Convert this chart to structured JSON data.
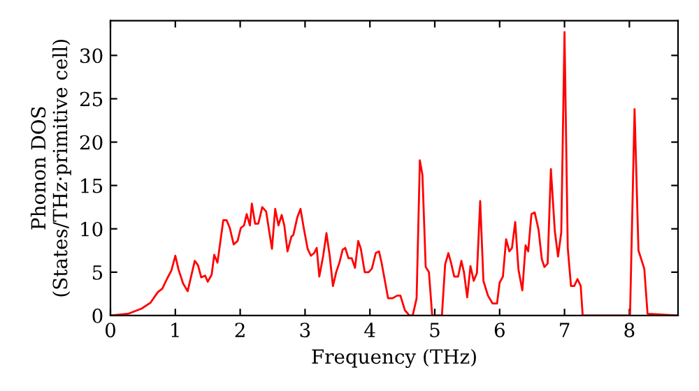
{
  "chart_data": {
    "type": "line",
    "xlabel": "Frequency (THz)",
    "ylabel": "Phonon DOS\n(States/THz·primitive cell)",
    "xlim": [
      0,
      8.75
    ],
    "ylim": [
      0,
      34
    ],
    "xticks": [
      0,
      1,
      2,
      3,
      4,
      5,
      6,
      7,
      8
    ],
    "yticks": [
      0,
      5,
      10,
      15,
      20,
      25,
      30
    ],
    "grid": false,
    "marker": "none",
    "line_style": "solid",
    "series": [
      {
        "color": "#ff0000",
        "x": [
          0,
          0.27,
          0.48,
          0.62,
          0.73,
          0.8,
          0.87,
          0.94,
          1.0,
          1.05,
          1.12,
          1.19,
          1.3,
          1.35,
          1.4,
          1.46,
          1.5,
          1.56,
          1.6,
          1.65,
          1.74,
          1.79,
          1.84,
          1.9,
          1.96,
          2.01,
          2.06,
          2.1,
          2.15,
          2.18,
          2.23,
          2.28,
          2.34,
          2.4,
          2.45,
          2.49,
          2.54,
          2.59,
          2.64,
          2.68,
          2.73,
          2.79,
          2.82,
          2.88,
          2.93,
          2.98,
          3.04,
          3.09,
          3.14,
          3.18,
          3.22,
          3.28,
          3.33,
          3.38,
          3.43,
          3.48,
          3.53,
          3.58,
          3.62,
          3.67,
          3.72,
          3.77,
          3.82,
          3.86,
          3.92,
          3.98,
          4.03,
          4.09,
          4.14,
          4.18,
          4.28,
          4.35,
          4.42,
          4.47,
          4.54,
          4.61,
          4.66,
          4.72,
          4.77,
          4.81,
          4.86,
          4.91,
          4.96,
          5.11,
          5.16,
          5.21,
          5.25,
          5.3,
          5.36,
          5.41,
          5.45,
          5.5,
          5.55,
          5.6,
          5.65,
          5.7,
          5.75,
          5.82,
          5.89,
          5.96,
          6.0,
          6.05,
          6.1,
          6.15,
          6.19,
          6.24,
          6.29,
          6.35,
          6.4,
          6.44,
          6.49,
          6.54,
          6.6,
          6.65,
          6.69,
          6.74,
          6.79,
          6.85,
          6.9,
          6.95,
          7.0,
          7.05,
          7.1,
          7.15,
          7.2,
          7.25,
          7.28,
          8.01,
          8.08,
          8.14,
          8.23,
          8.28,
          8.75
        ],
        "values": [
          0,
          0.2,
          0.8,
          1.5,
          2.7,
          3.1,
          4.2,
          5.2,
          6.9,
          5.3,
          3.7,
          2.8,
          6.3,
          5.8,
          4.4,
          4.6,
          3.9,
          4.7,
          7.0,
          6.1,
          11.0,
          11.0,
          10.1,
          8.2,
          8.6,
          10.1,
          10.4,
          11.7,
          10.4,
          12.9,
          10.6,
          10.6,
          12.5,
          12.0,
          9.6,
          7.7,
          12.3,
          10.4,
          11.6,
          10.4,
          7.4,
          9.1,
          9.3,
          11.3,
          12.3,
          10.1,
          7.7,
          6.9,
          7.2,
          7.8,
          4.5,
          6.9,
          9.5,
          6.9,
          3.4,
          5.0,
          6.1,
          7.6,
          7.8,
          6.6,
          6.6,
          5.5,
          8.6,
          7.7,
          5.0,
          5.0,
          5.4,
          7.2,
          7.4,
          6.1,
          2.0,
          2.0,
          2.3,
          2.3,
          0.6,
          0,
          0,
          2.0,
          17.9,
          16.2,
          5.6,
          5.0,
          0,
          0,
          5.9,
          7.2,
          6.1,
          4.5,
          4.5,
          6.3,
          5.0,
          2.1,
          5.7,
          4.0,
          4.9,
          13.2,
          4.0,
          2.3,
          1.4,
          1.4,
          3.8,
          4.5,
          8.8,
          7.4,
          7.8,
          10.8,
          5.3,
          2.9,
          8.1,
          7.4,
          11.7,
          11.9,
          9.9,
          6.5,
          5.6,
          6.0,
          16.9,
          9.8,
          6.8,
          9.6,
          32.7,
          7.8,
          3.4,
          3.4,
          4.2,
          3.4,
          0,
          0,
          23.8,
          7.5,
          5.4,
          0.2,
          0
        ]
      }
    ]
  }
}
